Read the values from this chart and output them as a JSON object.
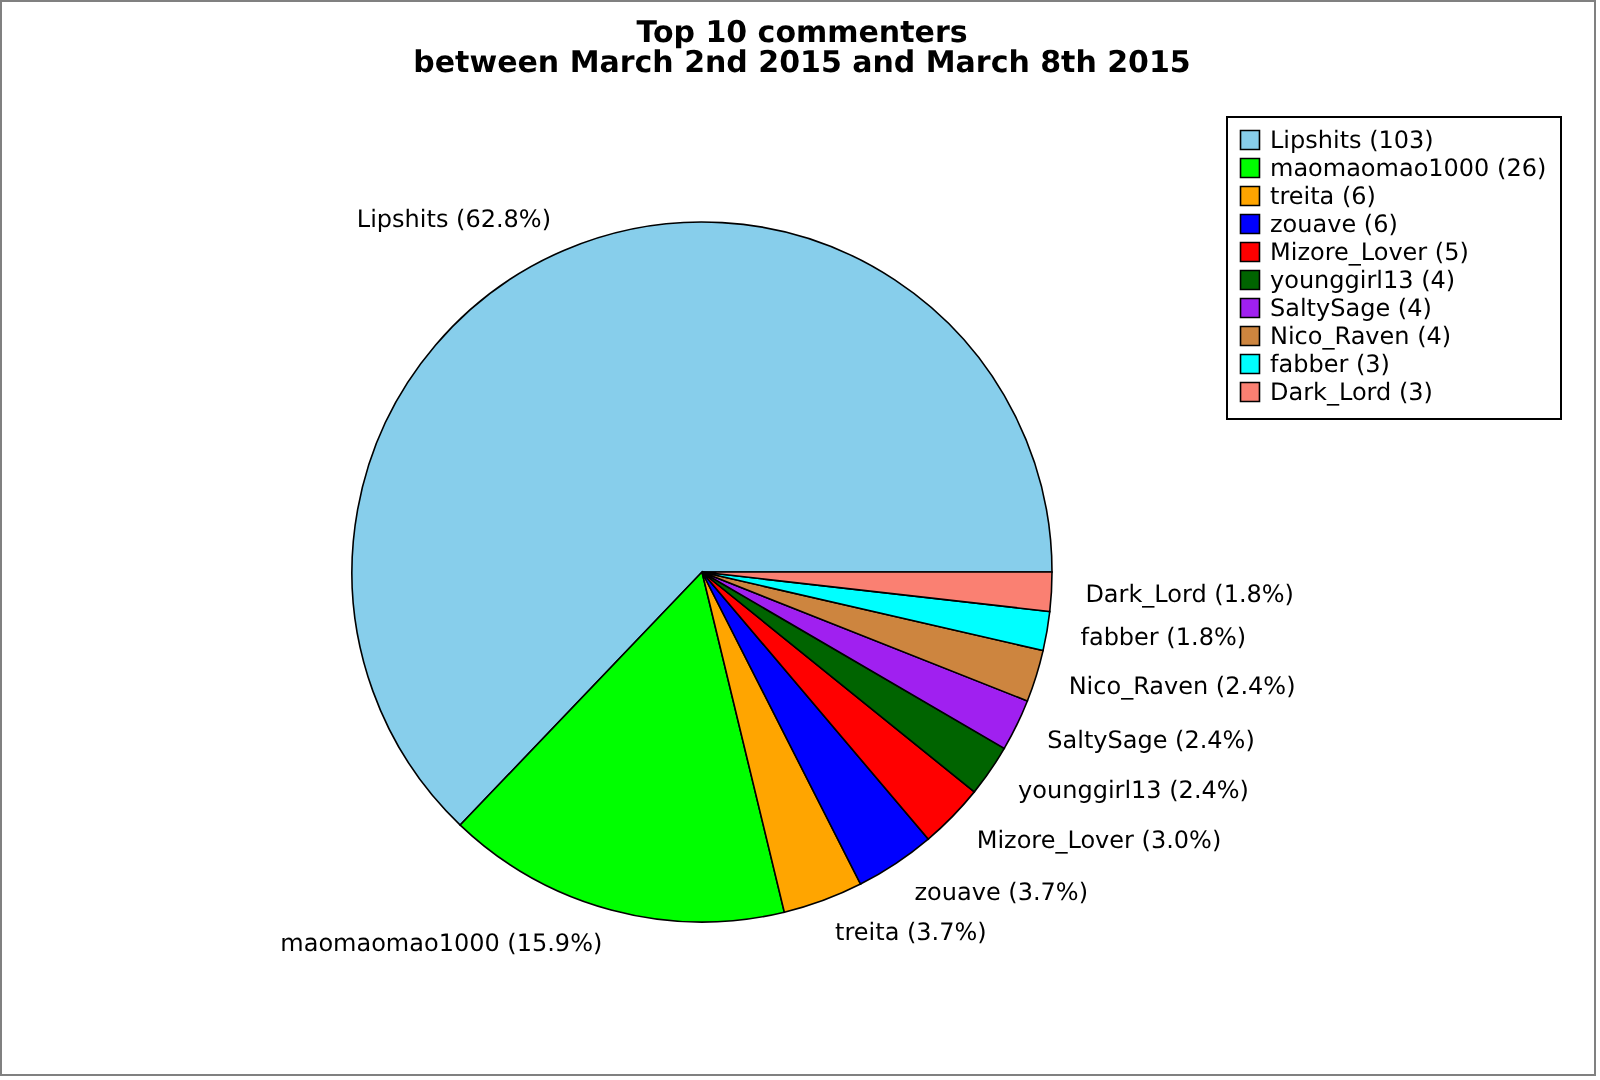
{
  "chart_data": {
    "type": "pie",
    "title": "Top 10 commenters",
    "subtitle": "between March 2nd 2015 and March 8th 2015",
    "categories": [
      "Lipshits (103)",
      "maomaomao1000 (26)",
      "treita (6)",
      "zouave (6)",
      "Mizore_Lover (5)",
      "younggirl13 (4)",
      "SaltySage (4)",
      "Nico_Raven (4)",
      "fabber (3)",
      "Dark_Lord (3)"
    ],
    "values": [
      62.8,
      15.9,
      3.7,
      3.7,
      3.0,
      2.4,
      2.4,
      2.4,
      1.8,
      1.8
    ],
    "value_labels": [
      "Lipshits (62.8%)",
      "maomaomao1000 (15.9%)",
      "treita (3.7%)",
      "zouave (3.7%)",
      "Mizore_Lover (3.0%)",
      "younggirl13 (2.4%)",
      "SaltySage (2.4%)",
      "Nico_Raven (2.4%)",
      "fabber (1.8%)",
      "Dark_Lord (1.8%)"
    ],
    "colors": [
      "#87ceeb",
      "#00ff00",
      "#ffa500",
      "#0000ff",
      "#ff0000",
      "#006400",
      "#a020f0",
      "#cd853f",
      "#00ffff",
      "#fa8072"
    ],
    "legend": "top right"
  }
}
